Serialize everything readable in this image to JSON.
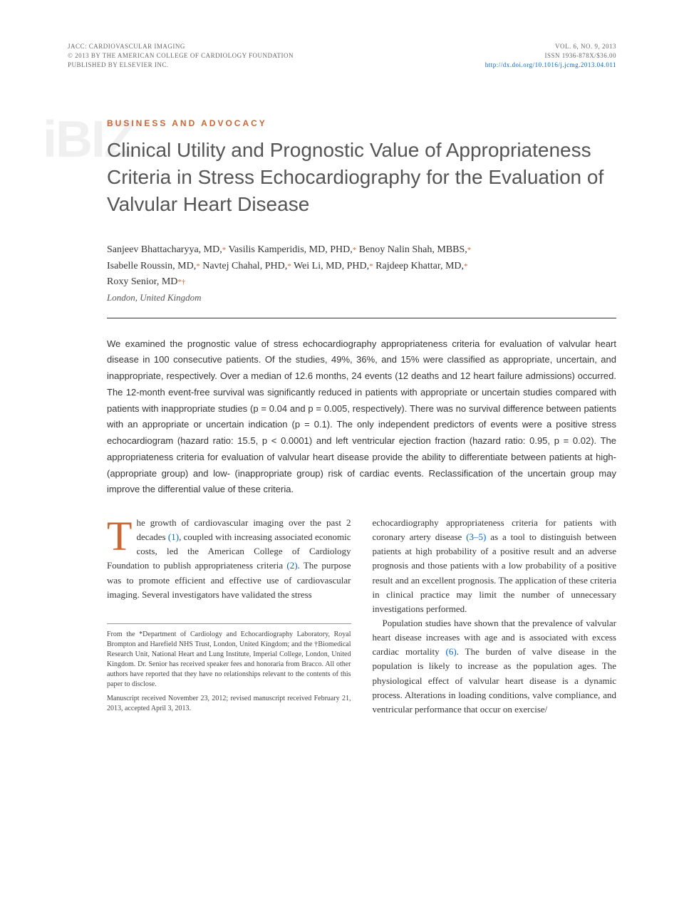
{
  "header": {
    "journal": "JACC: CARDIOVASCULAR IMAGING",
    "copyright": "© 2013 BY THE AMERICAN COLLEGE OF CARDIOLOGY FOUNDATION",
    "publisher": "PUBLISHED BY ELSEVIER INC.",
    "volume": "VOL. 6, NO. 9, 2013",
    "issn": "ISSN 1936-878X/$36.00",
    "doi": "http://dx.doi.org/10.1016/j.jcmg.2013.04.011"
  },
  "watermark": "iBIZ",
  "section_label": "BUSINESS AND ADVOCACY",
  "title": "Clinical Utility and Prognostic Value of Appropriateness Criteria in Stress Echocardiography for the Evaluation of Valvular Heart Disease",
  "authors_line1": "Sanjeev Bhattacharyya, MD,",
  "authors_line1_b": " Vasilis Kamperidis, MD, PHD,",
  "authors_line1_c": " Benoy Nalin Shah, MBBS,",
  "authors_line2": "Isabelle Roussin, MD,",
  "authors_line2_b": " Navtej Chahal, PHD,",
  "authors_line2_c": " Wei Li, MD, PHD,",
  "authors_line2_d": " Rajdeep Khattar, MD,",
  "authors_line3": "Roxy Senior, MD",
  "location": "London, United Kingdom",
  "abstract": "We examined the prognostic value of stress echocardiography appropriateness criteria for evaluation of valvular heart disease in 100 consecutive patients. Of the studies, 49%, 36%, and 15% were classified as appropriate, uncertain, and inappropriate, respectively. Over a median of 12.6 months, 24 events (12 deaths and 12 heart failure admissions) occurred. The 12-month event-free survival was significantly reduced in patients with appropriate or uncertain studies compared with patients with inappropriate studies (p = 0.04 and p = 0.005, respectively). There was no survival difference between patients with an appropriate or uncertain indication (p = 0.1). The only independent predictors of events were a positive stress echocardiogram (hazard ratio: 15.5, p < 0.0001) and left ventricular ejection fraction (hazard ratio: 0.95, p = 0.02). The appropriateness criteria for evaluation of valvular heart disease provide the ability to differentiate between patients at high- (appropriate group) and low- (inappropriate group) risk of cardiac events. Reclassification of the uncertain group may improve the differential value of these criteria.",
  "body": {
    "col1_dropcap": "T",
    "col1_p1": "he growth of cardiovascular imaging over the past 2 decades ",
    "col1_ref1": "(1)",
    "col1_p1b": ", coupled with increasing associated economic costs, led the American College of Cardiology Foundation to publish appropriateness criteria ",
    "col1_ref2": "(2)",
    "col1_p1c": ". The purpose was to promote efficient and effective use of cardiovascular imaging. Several investigators have validated the stress",
    "col2_p1": "echocardiography appropriateness criteria for patients with coronary artery disease ",
    "col2_ref1": "(3–5)",
    "col2_p1b": " as a tool to distinguish between patients at high probability of a positive result and an adverse prognosis and those patients with a low probability of a positive result and an excellent prognosis. The application of these criteria in clinical practice may limit the number of unnecessary investigations performed.",
    "col2_p2a": "Population studies have shown that the prevalence of valvular heart disease increases with age and is associated with excess cardiac mortality ",
    "col2_ref2": "(6)",
    "col2_p2b": ". The burden of valve disease in the population is likely to increase as the population ages. The physiological effect of valvular heart disease is a dynamic process. Alterations in loading conditions, valve compliance, and ventricular performance that occur on exercise/"
  },
  "footnote": {
    "p1": "From the *Department of Cardiology and Echocardiography Laboratory, Royal Brompton and Harefield NHS Trust, London, United Kingdom; and the †Biomedical Research Unit, National Heart and Lung Institute, Imperial College, London, United Kingdom. Dr. Senior has received speaker fees and honoraria from Bracco. All other authors have reported that they have no relationships relevant to the contents of this paper to disclose.",
    "p2": "Manuscript received November 23, 2012; revised manuscript received February 21, 2013, accepted April 3, 2013."
  },
  "colors": {
    "accent": "#cc6633",
    "link": "#0066cc",
    "text": "#333333",
    "muted": "#666666",
    "watermark": "#f0f0f0"
  }
}
